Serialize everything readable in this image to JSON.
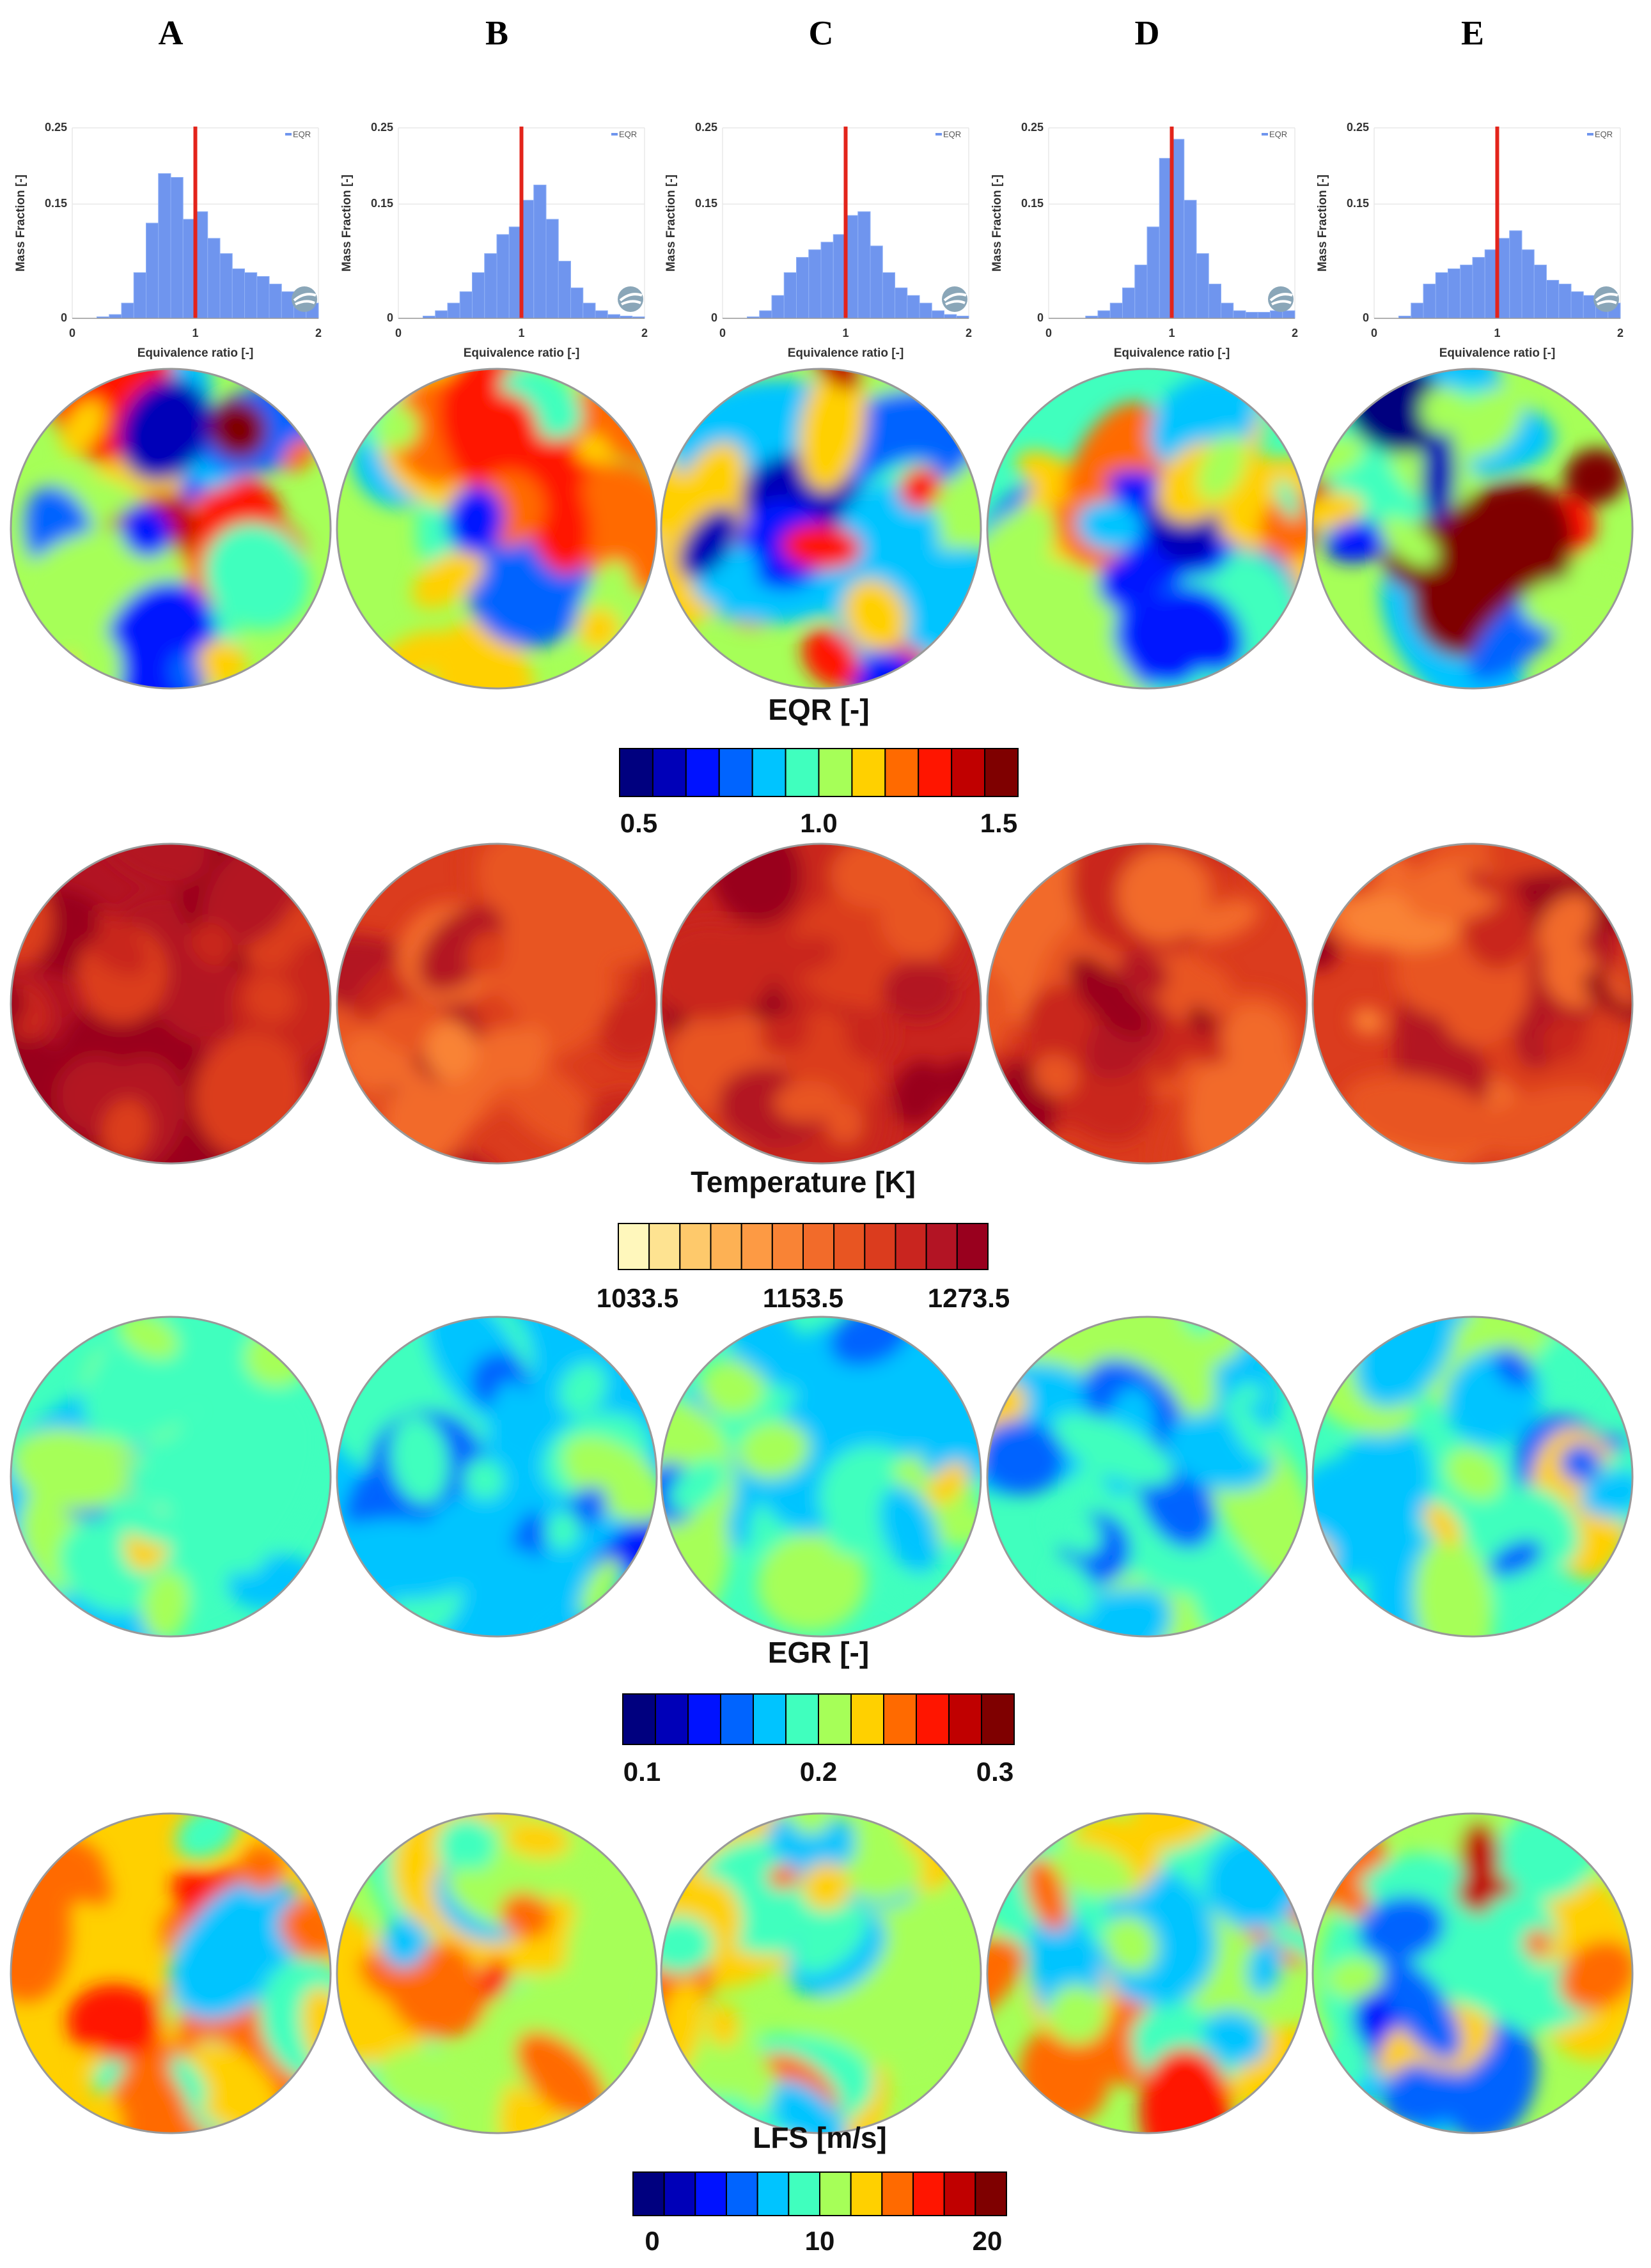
{
  "columns": [
    "A",
    "B",
    "C",
    "D",
    "E"
  ],
  "chart_data": [
    {
      "type": "histogram",
      "xlabel": "Equivalence ratio [-]",
      "ylabel": "Mass Fraction [-]",
      "bins": [
        0,
        0.1,
        0.2,
        0.3,
        0.4,
        0.5,
        0.6,
        0.7,
        0.8,
        0.9,
        1,
        1.1,
        1.2,
        1.3,
        1.4,
        1.5,
        1.6,
        1.7,
        1.8,
        1.9,
        2
      ],
      "series": [
        {
          "name": "EQR",
          "color": "#6f95ee",
          "values": [
            0,
            0,
            0.002,
            0.005,
            0.02,
            0.06,
            0.125,
            0.19,
            0.185,
            0.13,
            0.14,
            0.105,
            0.085,
            0.065,
            0.06,
            0.055,
            0.045,
            0.035,
            0.03,
            0.02
          ]
        }
      ],
      "xlim": [
        0,
        2
      ],
      "ylim": [
        0,
        0.25
      ],
      "xticks": [
        0,
        1,
        2
      ],
      "yticks": [
        0,
        0.15,
        0.25
      ],
      "grid": true,
      "vline": 1,
      "vline_color": "#e3241b"
    },
    {
      "type": "histogram",
      "xlabel": "Equivalence ratio [-]",
      "ylabel": "Mass Fraction [-]",
      "bins": [
        0,
        0.1,
        0.2,
        0.3,
        0.4,
        0.5,
        0.6,
        0.7,
        0.8,
        0.9,
        1,
        1.1,
        1.2,
        1.3,
        1.4,
        1.5,
        1.6,
        1.7,
        1.8,
        1.9,
        2
      ],
      "series": [
        {
          "name": "EQR",
          "color": "#6f95ee",
          "values": [
            0,
            0,
            0.003,
            0.01,
            0.02,
            0.035,
            0.06,
            0.085,
            0.11,
            0.12,
            0.155,
            0.175,
            0.13,
            0.075,
            0.04,
            0.02,
            0.01,
            0.005,
            0.003,
            0.002
          ]
        }
      ],
      "xlim": [
        0,
        2
      ],
      "ylim": [
        0,
        0.25
      ],
      "xticks": [
        0,
        1,
        2
      ],
      "yticks": [
        0,
        0.15,
        0.25
      ],
      "grid": true,
      "vline": 1,
      "vline_color": "#e3241b"
    },
    {
      "type": "histogram",
      "xlabel": "Equivalence ratio [-]",
      "ylabel": "Mass Fraction [-]",
      "bins": [
        0,
        0.1,
        0.2,
        0.3,
        0.4,
        0.5,
        0.6,
        0.7,
        0.8,
        0.9,
        1,
        1.1,
        1.2,
        1.3,
        1.4,
        1.5,
        1.6,
        1.7,
        1.8,
        1.9,
        2
      ],
      "series": [
        {
          "name": "EQR",
          "color": "#6f95ee",
          "values": [
            0,
            0,
            0.002,
            0.01,
            0.03,
            0.06,
            0.08,
            0.09,
            0.1,
            0.11,
            0.135,
            0.14,
            0.095,
            0.06,
            0.04,
            0.03,
            0.02,
            0.01,
            0.005,
            0.003
          ]
        }
      ],
      "xlim": [
        0,
        2
      ],
      "ylim": [
        0,
        0.25
      ],
      "xticks": [
        0,
        1,
        2
      ],
      "yticks": [
        0,
        0.15,
        0.25
      ],
      "grid": true,
      "vline": 1,
      "vline_color": "#e3241b"
    },
    {
      "type": "histogram",
      "xlabel": "Equivalence ratio [-]",
      "ylabel": "Mass Fraction [-]",
      "bins": [
        0,
        0.1,
        0.2,
        0.3,
        0.4,
        0.5,
        0.6,
        0.7,
        0.8,
        0.9,
        1,
        1.1,
        1.2,
        1.3,
        1.4,
        1.5,
        1.6,
        1.7,
        1.8,
        1.9,
        2
      ],
      "series": [
        {
          "name": "EQR",
          "color": "#6f95ee",
          "values": [
            0,
            0,
            0,
            0.003,
            0.01,
            0.02,
            0.04,
            0.07,
            0.12,
            0.21,
            0.235,
            0.155,
            0.085,
            0.045,
            0.02,
            0.01,
            0.008,
            0.008,
            0.01,
            0.01
          ]
        }
      ],
      "xlim": [
        0,
        2
      ],
      "ylim": [
        0,
        0.25
      ],
      "xticks": [
        0,
        1,
        2
      ],
      "yticks": [
        0,
        0.15,
        0.25
      ],
      "grid": true,
      "vline": 1,
      "vline_color": "#e3241b"
    },
    {
      "type": "histogram",
      "xlabel": "Equivalence ratio [-]",
      "ylabel": "Mass Fraction [-]",
      "bins": [
        0,
        0.1,
        0.2,
        0.3,
        0.4,
        0.5,
        0.6,
        0.7,
        0.8,
        0.9,
        1,
        1.1,
        1.2,
        1.3,
        1.4,
        1.5,
        1.6,
        1.7,
        1.8,
        1.9,
        2
      ],
      "series": [
        {
          "name": "EQR",
          "color": "#6f95ee",
          "values": [
            0,
            0,
            0.003,
            0.02,
            0.045,
            0.06,
            0.065,
            0.07,
            0.08,
            0.09,
            0.105,
            0.115,
            0.09,
            0.07,
            0.05,
            0.045,
            0.035,
            0.03,
            0.025,
            0.02
          ]
        }
      ],
      "xlim": [
        0,
        2
      ],
      "ylim": [
        0,
        0.25
      ],
      "xticks": [
        0,
        1,
        2
      ],
      "yticks": [
        0,
        0.15,
        0.25
      ],
      "grid": true,
      "vline": 1,
      "vline_color": "#e3241b"
    }
  ],
  "colorbars": [
    {
      "title": "EQR [-]",
      "colors": [
        "#00007f",
        "#0000b8",
        "#0012ff",
        "#0064ff",
        "#00c4ff",
        "#40ffbe",
        "#a6ff58",
        "#ffd000",
        "#ff6a00",
        "#ff1500",
        "#c00000",
        "#7f0000"
      ],
      "ticks": [
        0.5,
        {
          "value": 1,
          "label": "1.0"
        },
        1.5
      ]
    },
    {
      "title": "Temperature [K]",
      "colors": [
        "#fff7bc",
        "#fee391",
        "#fec96b",
        "#fdb154",
        "#fd9a44",
        "#f98335",
        "#f26b2a",
        "#e85522",
        "#db3c1e",
        "#c9251f",
        "#b31424",
        "#99001e"
      ],
      "ticks": [
        1033.5,
        1153.5,
        1273.5
      ]
    },
    {
      "title": "EGR [-]",
      "colors": [
        "#00007f",
        "#0000b8",
        "#0012ff",
        "#0064ff",
        "#00c4ff",
        "#40ffbe",
        "#a6ff58",
        "#ffd000",
        "#ff6a00",
        "#ff1500",
        "#c00000",
        "#7f0000"
      ],
      "ticks": [
        0.1,
        0.2,
        0.3
      ]
    },
    {
      "title": "LFS [m/s]",
      "colors": [
        "#00007f",
        "#0000b8",
        "#0012ff",
        "#0064ff",
        "#00c4ff",
        "#40ffbe",
        "#a6ff58",
        "#ffd000",
        "#ff6a00",
        "#ff1500",
        "#c00000",
        "#7f0000"
      ],
      "ticks": [
        0,
        10,
        20
      ]
    }
  ]
}
